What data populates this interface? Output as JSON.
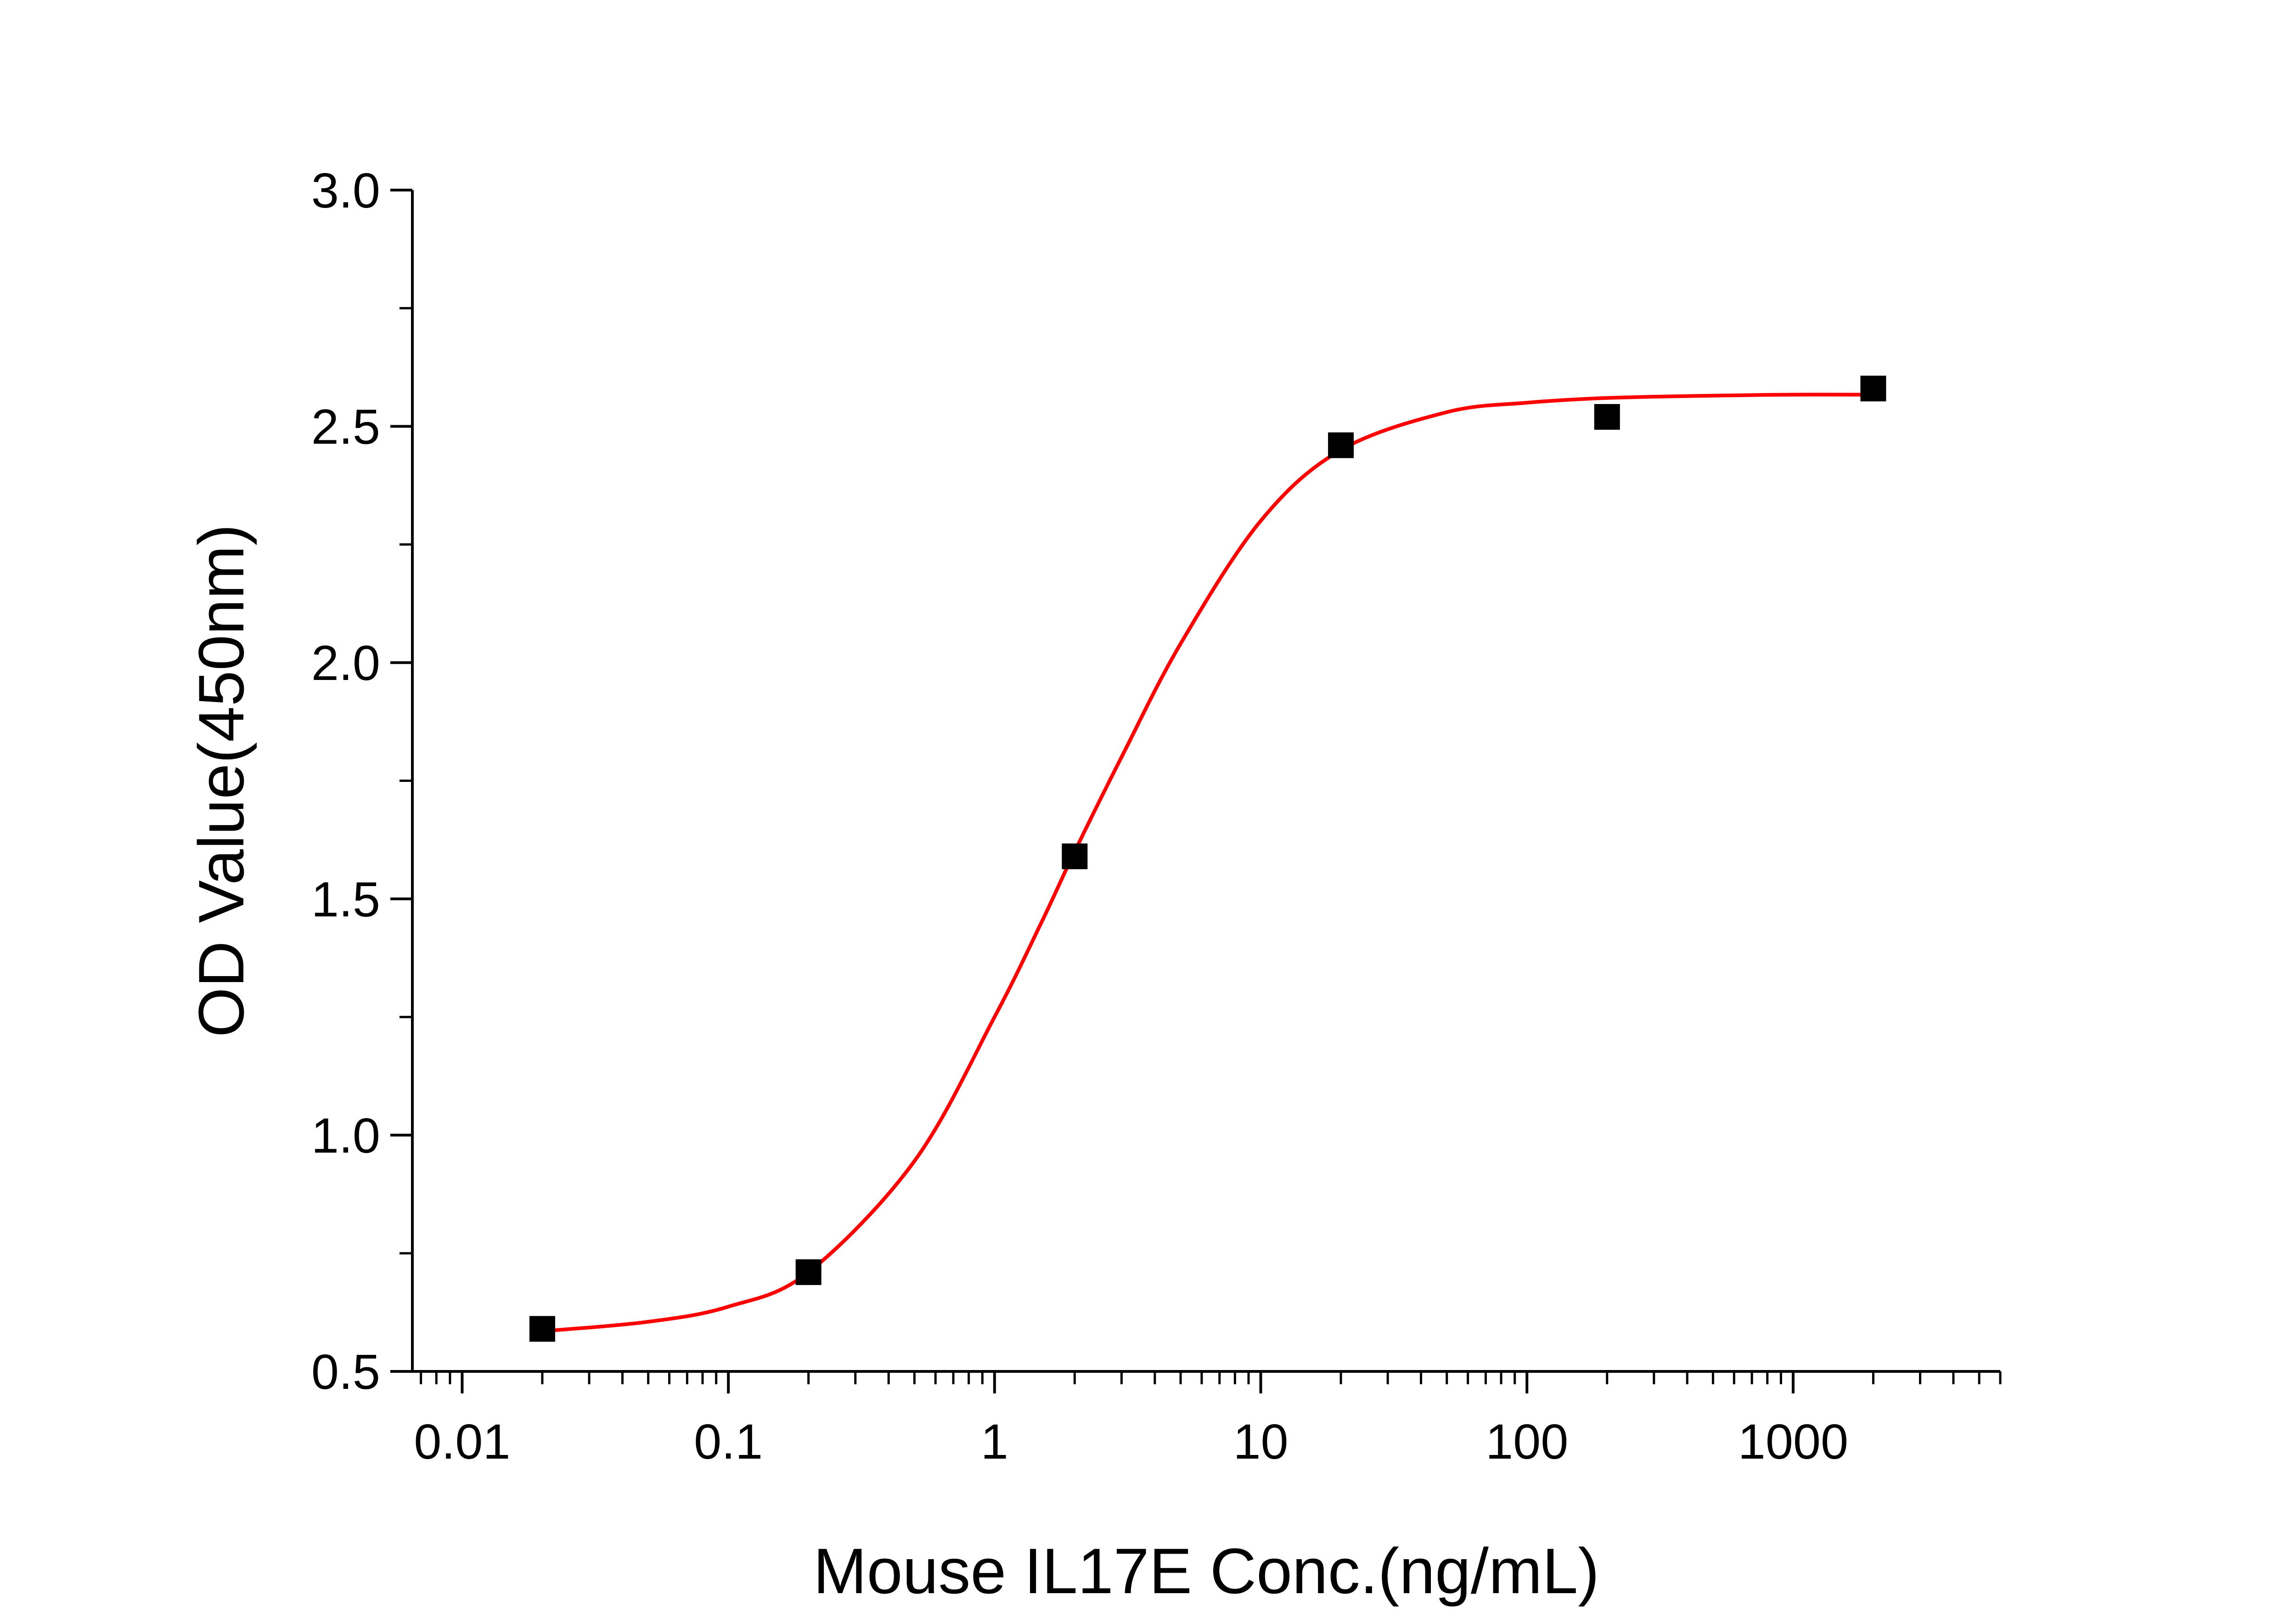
{
  "chart_data": {
    "type": "scatter",
    "xlabel": "Mouse IL17E Conc.(ng/mL)",
    "ylabel": "OD Value(450nm)",
    "xscale": "log",
    "xlim": [
      0.0065,
      6000
    ],
    "ylim": [
      0.5,
      3.0
    ],
    "x_tick_labels": [
      "0.01",
      "0.1",
      "1",
      "10",
      "100",
      "1000"
    ],
    "x_ticks": [
      0.01,
      0.1,
      1,
      10,
      100,
      1000
    ],
    "y_tick_labels": [
      "0.5",
      "1.0",
      "1.5",
      "2.0",
      "2.5",
      "3.0"
    ],
    "y_ticks": [
      0.5,
      1.0,
      1.5,
      2.0,
      2.5,
      3.0
    ],
    "grid": false,
    "legend": "none",
    "series": [
      {
        "type": "scatter",
        "marker": "square",
        "color": "#000000",
        "x": [
          0.02,
          0.2,
          2,
          20,
          200,
          2000
        ],
        "y": [
          0.59,
          0.71,
          1.59,
          2.46,
          2.52,
          2.58
        ]
      },
      {
        "type": "line",
        "fit": "four-parameter logistic",
        "color": "#ff0000",
        "x": [
          0.02,
          0.05,
          0.1,
          0.2,
          0.5,
          1,
          1.5,
          2,
          3,
          5,
          10,
          20,
          50,
          100,
          200,
          500,
          1000,
          2000
        ],
        "y": [
          0.585,
          0.605,
          0.637,
          0.71,
          0.945,
          1.25,
          1.45,
          1.6,
          1.8,
          2.04,
          2.3,
          2.45,
          2.53,
          2.55,
          2.56,
          2.565,
          2.567,
          2.567
        ]
      }
    ]
  }
}
